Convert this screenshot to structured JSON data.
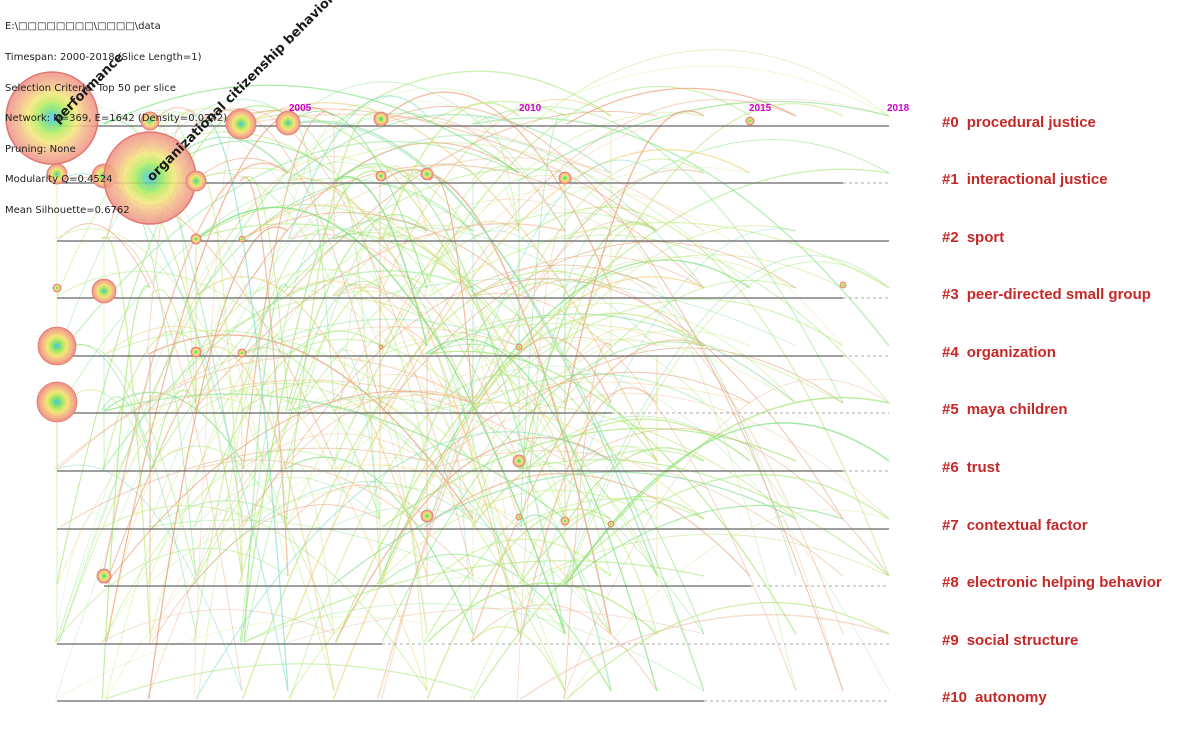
{
  "info": {
    "path": "E:\\□□□□□□□□\\□□□□\\data",
    "timespan": "Timespan: 2000-2018 (Slice Length=1)",
    "selection": "Selection Criteria: Top 50 per slice",
    "network": "Network: N=369, E=1642 (Density=0.0242)",
    "pruning": "Pruning: None",
    "modularity": "Modularity Q=0.4524",
    "silhouette": "Mean Silhouette=0.6762"
  },
  "years": [
    "2005",
    "2010",
    "2015",
    "2018"
  ],
  "clusters": [
    {
      "id": "#0",
      "name": "procedural justice"
    },
    {
      "id": "#1",
      "name": "interactional justice"
    },
    {
      "id": "#2",
      "name": "sport"
    },
    {
      "id": "#3",
      "name": "peer-directed small group"
    },
    {
      "id": "#4",
      "name": "organization"
    },
    {
      "id": "#5",
      "name": "maya children"
    },
    {
      "id": "#6",
      "name": "trust"
    },
    {
      "id": "#7",
      "name": "contextual factor"
    },
    {
      "id": "#8",
      "name": "electronic helping behavior"
    },
    {
      "id": "#9",
      "name": "social structure"
    },
    {
      "id": "#10",
      "name": "autonomy"
    }
  ],
  "node_labels": {
    "performance": "performance",
    "ocb": "organizational citizenship behavior"
  },
  "colors": {
    "cluster_label": "#c62828",
    "year_label": "#d000d0",
    "timeline": "#555555"
  }
}
